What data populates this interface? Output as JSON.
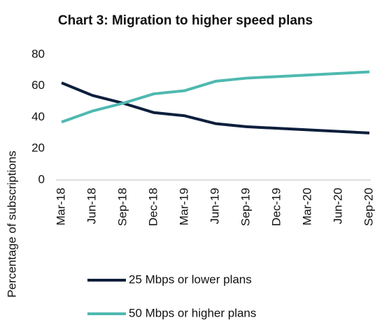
{
  "chart_data": {
    "type": "line",
    "title": "Chart 3: Migration to higher speed plans",
    "y_label": "Percentage of subscriptions",
    "categories": [
      "Mar-18",
      "Jun-18",
      "Sep-18",
      "Dec-18",
      "Mar-19",
      "Jun-19",
      "Sep-19",
      "Dec-19",
      "Mar-20",
      "Jun-20",
      "Sep-20"
    ],
    "series": [
      {
        "name": "25 Mbps or lower plans",
        "color": "#0d1f3c",
        "values": [
          62,
          54,
          49,
          43,
          41,
          36,
          34,
          33,
          32,
          31,
          30
        ]
      },
      {
        "name": "50 Mbps or higher plans",
        "color": "#4fb9b0",
        "values": [
          37,
          44,
          49,
          55,
          57,
          63,
          65,
          66,
          67,
          68,
          69
        ]
      }
    ],
    "ylim": [
      0,
      80
    ],
    "yticks": [
      0,
      20,
      40,
      60,
      80
    ],
    "grid": false
  }
}
